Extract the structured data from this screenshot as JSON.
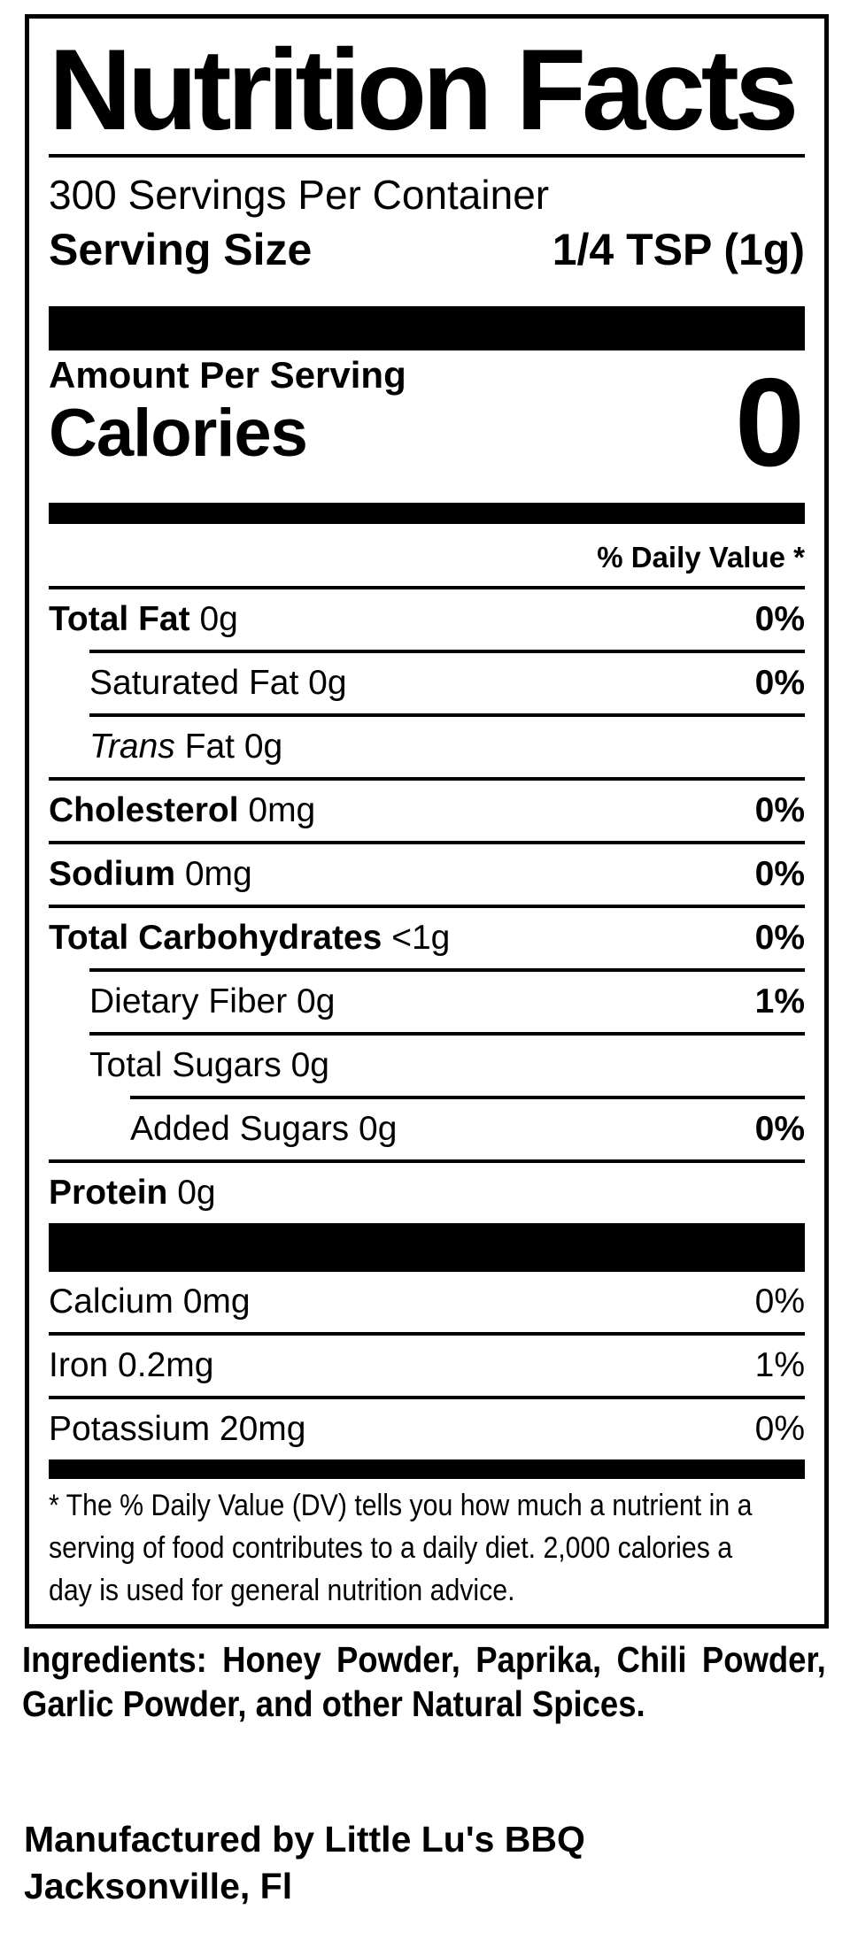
{
  "colors": {
    "ink": "#000000",
    "background": "#ffffff"
  },
  "label": {
    "title": "Nutrition Facts",
    "servings_per_container": "300 Servings Per Container",
    "serving_size_label": "Serving Size",
    "serving_size_value": "1/4 TSP (1g)",
    "amount_per_serving": "Amount Per Serving",
    "calories_label": "Calories",
    "calories_value": "0",
    "daily_value_header": "% Daily Value *",
    "nutrient_rows": [
      {
        "parts": [
          {
            "t": "Total Fat",
            "b": true
          },
          {
            "t": " 0g"
          }
        ],
        "dv": "0%",
        "dv_bold": true,
        "indent": 0,
        "rule": "i1"
      },
      {
        "parts": [
          {
            "t": "Saturated Fat 0g"
          }
        ],
        "dv": "0%",
        "dv_bold": true,
        "indent": 1,
        "rule": "i1"
      },
      {
        "parts": [
          {
            "t": "Trans",
            "i": true
          },
          {
            "t": " Fat 0g"
          }
        ],
        "dv": "",
        "dv_bold": false,
        "indent": 1,
        "rule": "full"
      },
      {
        "parts": [
          {
            "t": "Cholesterol",
            "b": true
          },
          {
            "t": " 0mg"
          }
        ],
        "dv": "0%",
        "dv_bold": true,
        "indent": 0,
        "rule": "full"
      },
      {
        "parts": [
          {
            "t": "Sodium",
            "b": true
          },
          {
            "t": " 0mg"
          }
        ],
        "dv": "0%",
        "dv_bold": true,
        "indent": 0,
        "rule": "full"
      },
      {
        "parts": [
          {
            "t": "Total Carbohydrates",
            "b": true
          },
          {
            "t": " <1g"
          }
        ],
        "dv": "0%",
        "dv_bold": true,
        "indent": 0,
        "rule": "i1"
      },
      {
        "parts": [
          {
            "t": "Dietary Fiber 0g"
          }
        ],
        "dv": "1%",
        "dv_bold": true,
        "indent": 1,
        "rule": "i1"
      },
      {
        "parts": [
          {
            "t": "Total Sugars 0g"
          }
        ],
        "dv": "",
        "dv_bold": false,
        "indent": 1,
        "rule": "i2"
      },
      {
        "parts": [
          {
            "t": "Added Sugars 0g"
          }
        ],
        "dv": "0%",
        "dv_bold": true,
        "indent": 2,
        "rule": "full"
      },
      {
        "parts": [
          {
            "t": "Protein",
            "b": true
          },
          {
            "t": " 0g"
          }
        ],
        "dv": "",
        "dv_bold": false,
        "indent": 0,
        "rule": "none"
      }
    ],
    "mineral_rows": [
      {
        "parts": [
          {
            "t": "Calcium 0mg"
          }
        ],
        "dv": "0%",
        "dv_bold": false,
        "indent": 0,
        "rule": "full"
      },
      {
        "parts": [
          {
            "t": "Iron 0.2mg"
          }
        ],
        "dv": "1%",
        "dv_bold": false,
        "indent": 0,
        "rule": "full"
      },
      {
        "parts": [
          {
            "t": "Potassium 20mg"
          }
        ],
        "dv": "0%",
        "dv_bold": false,
        "indent": 0,
        "rule": "none"
      }
    ],
    "footnote_lines": [
      "* The % Daily Value (DV) tells you how much a nutrient in a",
      "serving of food contributes to a daily diet. 2,000 calories a",
      "day is used for general nutrition advice."
    ]
  },
  "ingredients_lines": [
    "Ingredients: Honey Powder, Paprika, Chili Powder,",
    "Garlic Powder, and other Natural Spices."
  ],
  "manufacturer_lines": [
    "Manufactured by Little Lu's BBQ",
    "Jacksonville, Fl"
  ]
}
